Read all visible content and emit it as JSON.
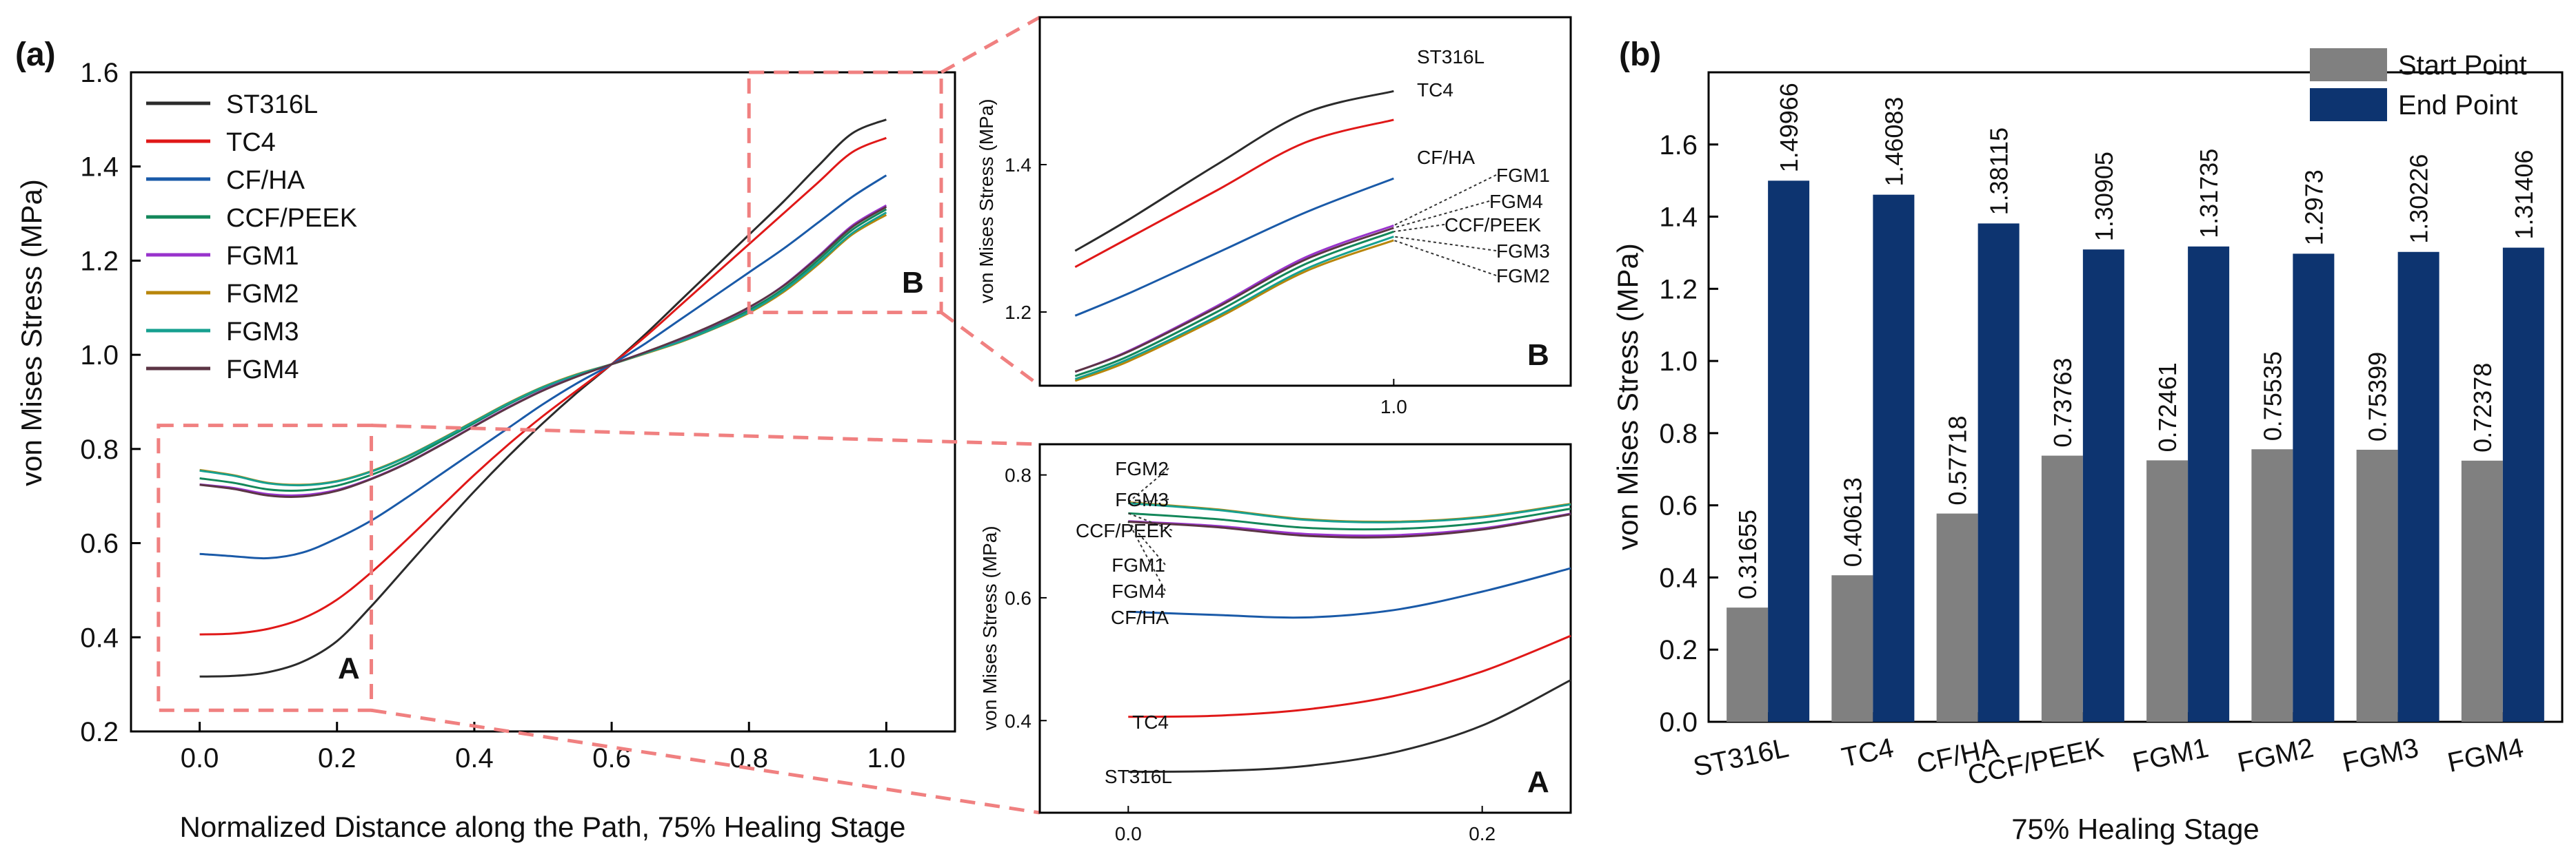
{
  "panel_labels": {
    "a": "(a)",
    "b": "(b)"
  },
  "chart_data": [
    {
      "id": "main",
      "type": "line",
      "xlabel": "Normalized Distance along the Path, 75% Healing Stage",
      "ylabel": "von Mises Stress (MPa)",
      "xlim": [
        -0.1,
        1.1
      ],
      "ylim": [
        0.2,
        1.6
      ],
      "xticks": [
        "0.0",
        "0.2",
        "0.4",
        "0.6",
        "0.8",
        "1.0"
      ],
      "yticks": [
        "0.2",
        "0.4",
        "0.6",
        "0.8",
        "1.0",
        "1.2",
        "1.4",
        "1.6"
      ],
      "zoom_labels": [
        "A",
        "B"
      ],
      "x": [
        0,
        0.05,
        0.1,
        0.15,
        0.2,
        0.25,
        0.3,
        0.35,
        0.4,
        0.45,
        0.5,
        0.55,
        0.6,
        0.65,
        0.7,
        0.75,
        0.8,
        0.85,
        0.9,
        0.95,
        1.0
      ],
      "series": [
        {
          "name": "ST316L",
          "color": "#2b2b2b",
          "values": [
            0.3166,
            0.318,
            0.326,
            0.348,
            0.392,
            0.466,
            0.548,
            0.63,
            0.71,
            0.785,
            0.855,
            0.92,
            0.98,
            1.045,
            1.115,
            1.185,
            1.255,
            1.325,
            1.4,
            1.47,
            1.4997
          ]
        },
        {
          "name": "TC4",
          "color": "#e01818",
          "values": [
            0.4061,
            0.408,
            0.418,
            0.44,
            0.48,
            0.538,
            0.605,
            0.675,
            0.745,
            0.81,
            0.87,
            0.925,
            0.98,
            1.04,
            1.105,
            1.17,
            1.235,
            1.3,
            1.365,
            1.43,
            1.4608
          ]
        },
        {
          "name": "CF/HA",
          "color": "#1a5aa8",
          "values": [
            0.5772,
            0.572,
            0.568,
            0.58,
            0.61,
            0.648,
            0.695,
            0.745,
            0.795,
            0.845,
            0.895,
            0.94,
            0.98,
            1.025,
            1.075,
            1.125,
            1.175,
            1.225,
            1.28,
            1.335,
            1.3812
          ]
        },
        {
          "name": "CCF/PEEK",
          "color": "#13875a",
          "values": [
            0.7376,
            0.728,
            0.714,
            0.712,
            0.722,
            0.745,
            0.776,
            0.815,
            0.855,
            0.895,
            0.93,
            0.958,
            0.98,
            1.005,
            1.03,
            1.06,
            1.095,
            1.14,
            1.2,
            1.265,
            1.3091
          ]
        },
        {
          "name": "FGM1",
          "color": "#9933cc",
          "values": [
            0.7246,
            0.717,
            0.704,
            0.702,
            0.713,
            0.737,
            0.769,
            0.808,
            0.849,
            0.889,
            0.925,
            0.955,
            0.98,
            1.006,
            1.033,
            1.064,
            1.1,
            1.147,
            1.208,
            1.274,
            1.3174
          ]
        },
        {
          "name": "FGM2",
          "color": "#b8860b",
          "values": [
            0.7554,
            0.744,
            0.728,
            0.724,
            0.732,
            0.753,
            0.783,
            0.82,
            0.859,
            0.898,
            0.932,
            0.959,
            0.98,
            1.003,
            1.027,
            1.056,
            1.089,
            1.133,
            1.191,
            1.255,
            1.2973
          ]
        },
        {
          "name": "FGM3",
          "color": "#17a090",
          "values": [
            0.754,
            0.743,
            0.727,
            0.723,
            0.731,
            0.752,
            0.782,
            0.819,
            0.858,
            0.897,
            0.931,
            0.958,
            0.98,
            1.004,
            1.028,
            1.057,
            1.091,
            1.136,
            1.194,
            1.258,
            1.3023
          ]
        },
        {
          "name": "FGM4",
          "color": "#5c3545",
          "values": [
            0.7238,
            0.715,
            0.701,
            0.699,
            0.711,
            0.736,
            0.768,
            0.807,
            0.848,
            0.888,
            0.924,
            0.954,
            0.98,
            1.006,
            1.034,
            1.065,
            1.101,
            1.146,
            1.206,
            1.271,
            1.3141
          ]
        }
      ]
    },
    {
      "id": "inset_b",
      "type": "line",
      "label": "B",
      "ylabel": "von Mises Stress (MPa)",
      "xlim": [
        0.8,
        1.1
      ],
      "ylim": [
        1.1,
        1.6
      ],
      "xticks": [
        "1.0"
      ],
      "yticks": [
        "1.2",
        "1.4"
      ],
      "callouts": [
        "ST316L",
        "TC4",
        "CF/HA",
        "FGM1",
        "FGM4",
        "CCF/PEEK",
        "FGM3",
        "FGM2"
      ]
    },
    {
      "id": "inset_a",
      "type": "line",
      "label": "A",
      "ylabel": "von Mises Stress (MPa)",
      "xlim": [
        -0.05,
        0.25
      ],
      "ylim": [
        0.25,
        0.85
      ],
      "xticks": [
        "0.0",
        "0.2"
      ],
      "yticks": [
        "0.4",
        "0.6",
        "0.8"
      ],
      "callouts": [
        "FGM2",
        "FGM3",
        "CCF/PEEK",
        "FGM1",
        "FGM4",
        "CF/HA",
        "TC4",
        "ST316L"
      ]
    },
    {
      "id": "bars",
      "type": "bar",
      "xlabel": "75% Healing Stage",
      "ylabel": "von Mises Stress (MPa)",
      "ylim": [
        0.0,
        1.8
      ],
      "yticks": [
        "0.0",
        "0.2",
        "0.4",
        "0.6",
        "0.8",
        "1.0",
        "1.2",
        "1.4",
        "1.6"
      ],
      "categories": [
        "ST316L",
        "TC4",
        "CF/HA",
        "CCF/PEEK",
        "FGM1",
        "FGM2",
        "FGM3",
        "FGM4"
      ],
      "series": [
        {
          "name": "Start Point",
          "color": "#808080",
          "values": [
            0.31655,
            0.40613,
            0.57718,
            0.73763,
            0.72461,
            0.75535,
            0.75399,
            0.72378
          ],
          "labels": [
            "0.31655",
            "0.40613",
            "0.57718",
            "0.73763",
            "0.72461",
            "0.75535",
            "0.75399",
            "0.72378"
          ]
        },
        {
          "name": "End Point",
          "color": "#0d3470",
          "values": [
            1.49966,
            1.46083,
            1.38115,
            1.30905,
            1.31735,
            1.2973,
            1.30226,
            1.31406
          ],
          "labels": [
            "1.49966",
            "1.46083",
            "1.38115",
            "1.30905",
            "1.31735",
            "1.2973",
            "1.30226",
            "1.31406"
          ]
        }
      ]
    }
  ]
}
